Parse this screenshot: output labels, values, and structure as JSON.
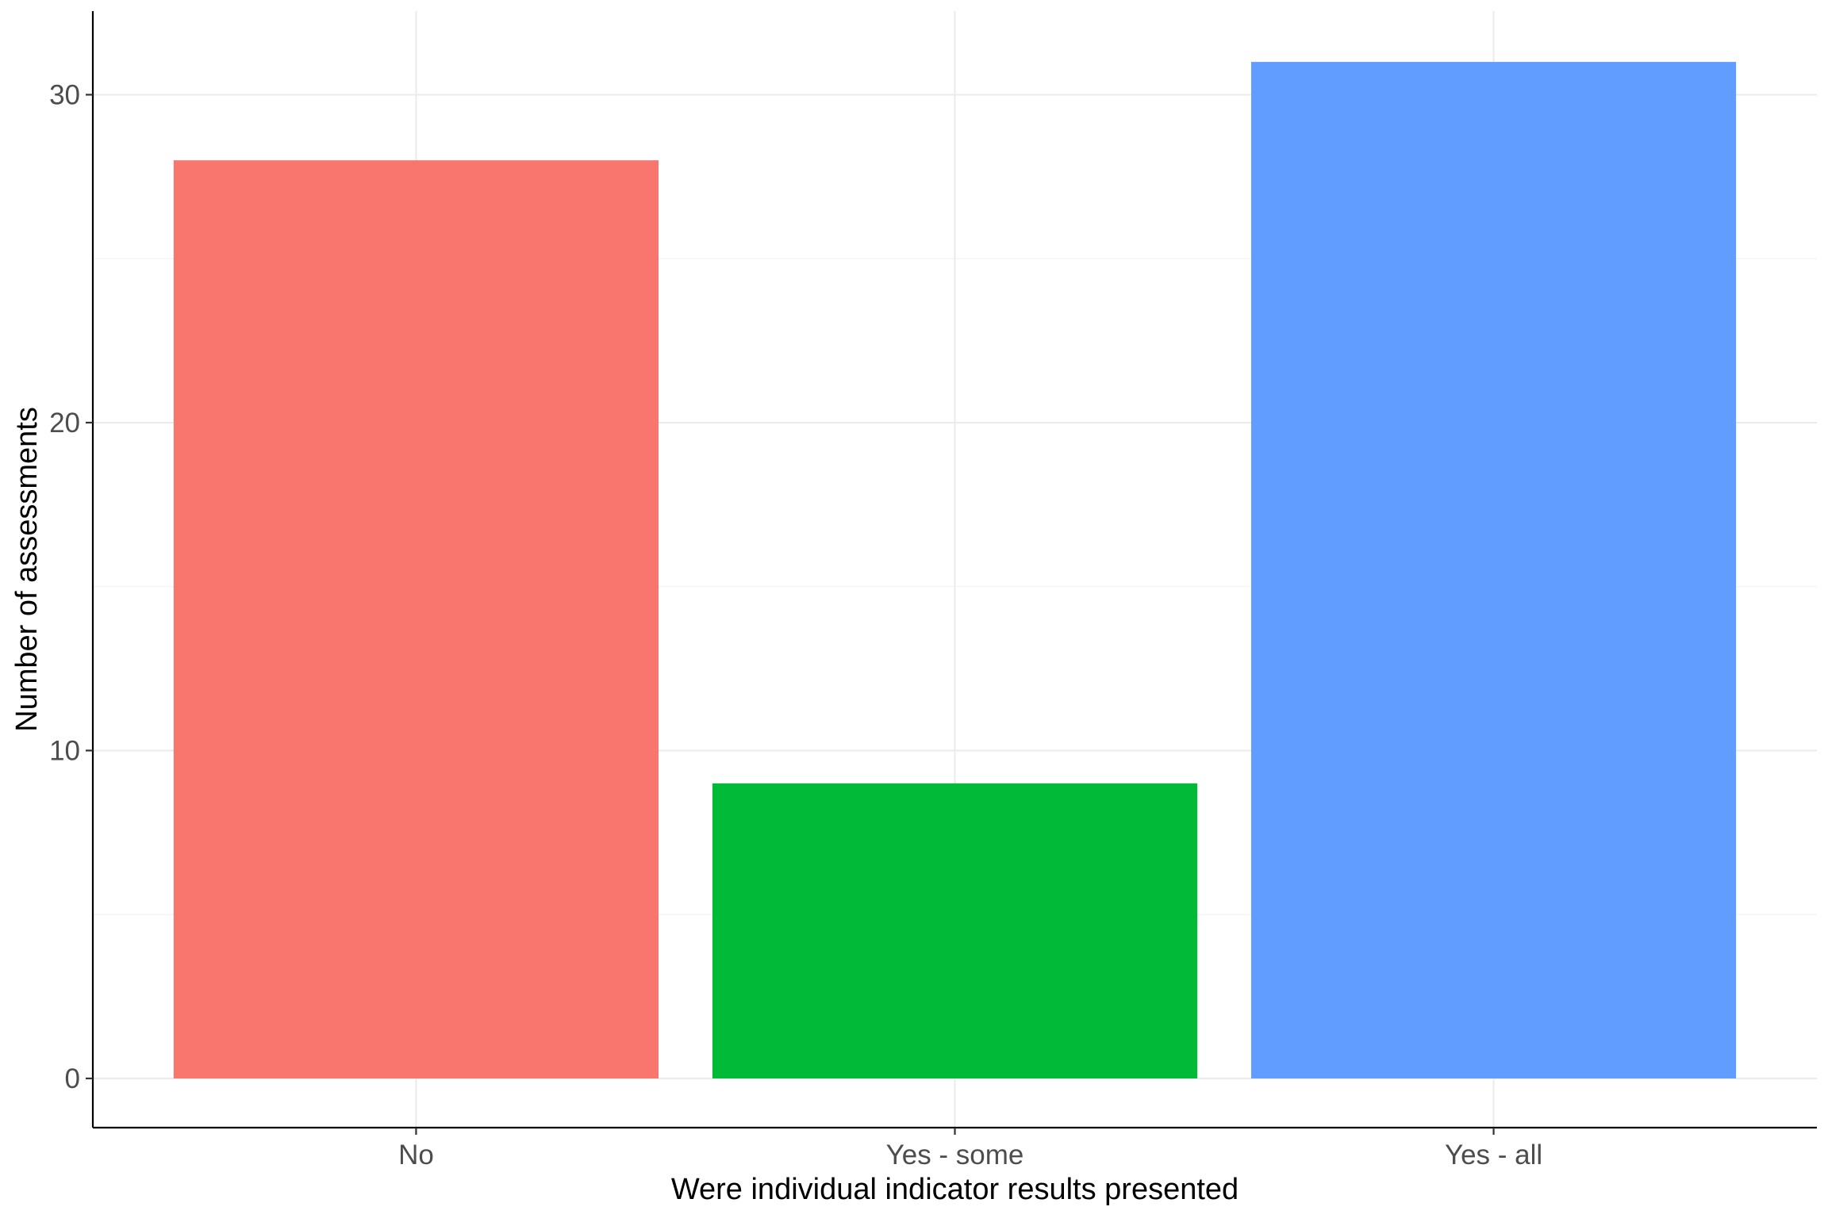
{
  "chart_data": {
    "type": "bar",
    "title": "",
    "xlabel": "Were individual indicator results presented",
    "ylabel": "Number of assessments",
    "categories": [
      "No",
      "Yes - some",
      "Yes - all"
    ],
    "values": [
      28,
      9,
      31
    ],
    "colors": [
      "#F8766D",
      "#00BA38",
      "#619CFF"
    ],
    "ylim": [
      -1.5,
      32.55
    ],
    "yticks": [
      0,
      10,
      20,
      30
    ],
    "yticks_minor": [
      5,
      15,
      25
    ],
    "grid": true,
    "legend": "none"
  }
}
